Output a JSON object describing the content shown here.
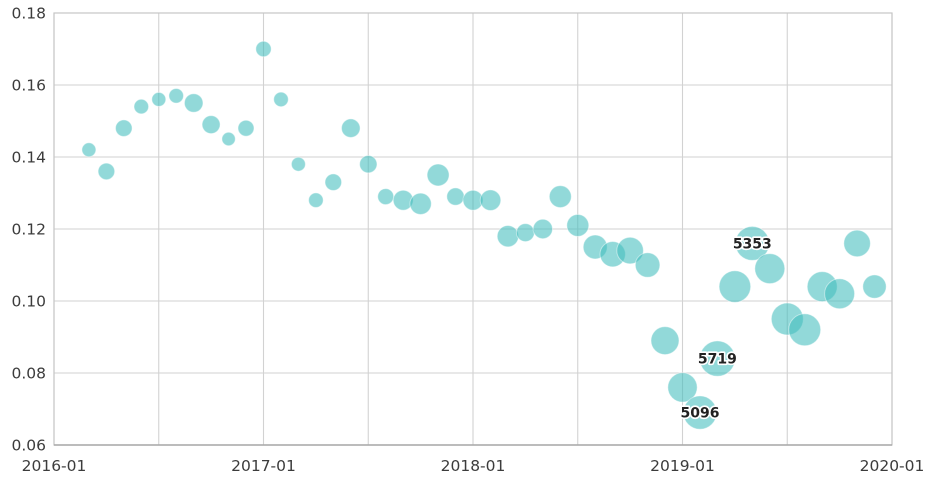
{
  "chart_data": {
    "type": "scatter",
    "title": "",
    "xlabel": "",
    "ylabel": "",
    "legend": "none",
    "grid": "on",
    "bubble_color": "#43bebe",
    "bubble_opacity": 0.58,
    "gridline_color": "#d2d2d2",
    "panel_border_color": "#c6c6c6",
    "axis_line_color": "#a9a9a9",
    "tick_text_color": "#3c3c3c",
    "x_axis": {
      "start": "2016-01",
      "end": "2020-01",
      "tick_labels": [
        "2016-01",
        "2017-01",
        "2018-01",
        "2019-01",
        "2020-01"
      ],
      "gridline_interval_months": 6
    },
    "y_axis": {
      "min": 0.06,
      "max": 0.18,
      "tick_labels": [
        "0.06",
        "0.08",
        "0.10",
        "0.12",
        "0.14",
        "0.16",
        "0.18"
      ],
      "tick_values": [
        0.06,
        0.08,
        0.1,
        0.12,
        0.14,
        0.16,
        0.18
      ]
    },
    "points": [
      {
        "date": "2016-03",
        "value": 0.142,
        "r": 7.0
      },
      {
        "date": "2016-04",
        "value": 0.136,
        "r": 8.3
      },
      {
        "date": "2016-05",
        "value": 0.148,
        "r": 8.3
      },
      {
        "date": "2016-06",
        "value": 0.154,
        "r": 7.3
      },
      {
        "date": "2016-07",
        "value": 0.156,
        "r": 7.0
      },
      {
        "date": "2016-08",
        "value": 0.157,
        "r": 7.3
      },
      {
        "date": "2016-09",
        "value": 0.155,
        "r": 9.3
      },
      {
        "date": "2016-10",
        "value": 0.149,
        "r": 9.0
      },
      {
        "date": "2016-11",
        "value": 0.145,
        "r": 6.7
      },
      {
        "date": "2016-12",
        "value": 0.148,
        "r": 8.0
      },
      {
        "date": "2017-01",
        "value": 0.17,
        "r": 7.7
      },
      {
        "date": "2017-02",
        "value": 0.156,
        "r": 7.3
      },
      {
        "date": "2017-03",
        "value": 0.138,
        "r": 7.0
      },
      {
        "date": "2017-04",
        "value": 0.128,
        "r": 7.3
      },
      {
        "date": "2017-05",
        "value": 0.133,
        "r": 8.3
      },
      {
        "date": "2017-06",
        "value": 0.148,
        "r": 9.3
      },
      {
        "date": "2017-07",
        "value": 0.138,
        "r": 8.7
      },
      {
        "date": "2017-08",
        "value": 0.129,
        "r": 8.0
      },
      {
        "date": "2017-09",
        "value": 0.128,
        "r": 10.0
      },
      {
        "date": "2017-10",
        "value": 0.127,
        "r": 10.7
      },
      {
        "date": "2017-11",
        "value": 0.135,
        "r": 11.0
      },
      {
        "date": "2017-12",
        "value": 0.129,
        "r": 8.7
      },
      {
        "date": "2018-01",
        "value": 0.128,
        "r": 10.0
      },
      {
        "date": "2018-02",
        "value": 0.128,
        "r": 10.3
      },
      {
        "date": "2018-03",
        "value": 0.118,
        "r": 10.7
      },
      {
        "date": "2018-04",
        "value": 0.119,
        "r": 9.0
      },
      {
        "date": "2018-05",
        "value": 0.12,
        "r": 9.7
      },
      {
        "date": "2018-06",
        "value": 0.129,
        "r": 11.0
      },
      {
        "date": "2018-07",
        "value": 0.121,
        "r": 11.0
      },
      {
        "date": "2018-08",
        "value": 0.115,
        "r": 12.0
      },
      {
        "date": "2018-09",
        "value": 0.113,
        "r": 12.7
      },
      {
        "date": "2018-10",
        "value": 0.114,
        "r": 13.3
      },
      {
        "date": "2018-11",
        "value": 0.11,
        "r": 12.3
      },
      {
        "date": "2018-12",
        "value": 0.089,
        "r": 14.0
      },
      {
        "date": "2019-01",
        "value": 0.076,
        "r": 14.7
      },
      {
        "date": "2019-02",
        "value": 0.069,
        "r": 16.7,
        "label": "5096"
      },
      {
        "date": "2019-03",
        "value": 0.084,
        "r": 17.7,
        "label": "5719"
      },
      {
        "date": "2019-04",
        "value": 0.104,
        "r": 15.8
      },
      {
        "date": "2019-05",
        "value": 0.116,
        "r": 17.0,
        "label": "5353"
      },
      {
        "date": "2019-06",
        "value": 0.109,
        "r": 15.0
      },
      {
        "date": "2019-07",
        "value": 0.095,
        "r": 16.0
      },
      {
        "date": "2019-08",
        "value": 0.092,
        "r": 16.0
      },
      {
        "date": "2019-09",
        "value": 0.104,
        "r": 15.0
      },
      {
        "date": "2019-10",
        "value": 0.102,
        "r": 15.0
      },
      {
        "date": "2019-11",
        "value": 0.116,
        "r": 13.3
      },
      {
        "date": "2019-12",
        "value": 0.104,
        "r": 11.7
      }
    ],
    "annotations": [
      {
        "date": "2019-02",
        "text": "5096"
      },
      {
        "date": "2019-03",
        "text": "5719"
      },
      {
        "date": "2019-05",
        "text": "5353"
      }
    ]
  }
}
